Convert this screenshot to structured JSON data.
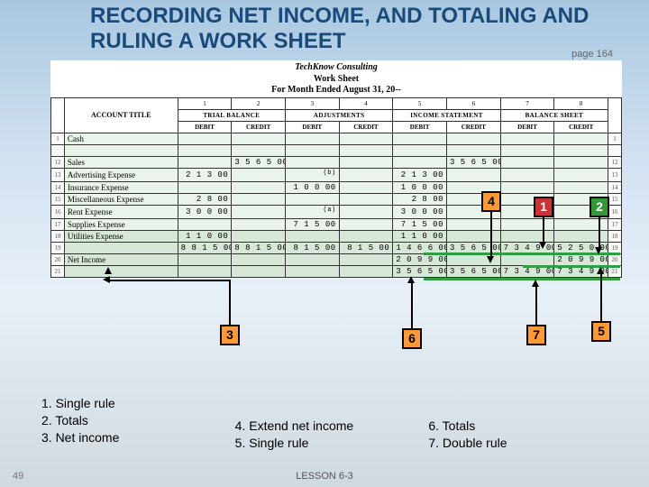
{
  "title": "RECORDING NET INCOME, AND TOTALING AND RULING A WORK SHEET",
  "page_ref": "page 164",
  "slide_number": "49",
  "footer": "LESSON 6-3",
  "ws": {
    "company": "TechKnow Consulting",
    "doc": "Work Sheet",
    "period": "For Month Ended August 31, 20--",
    "acct_title_hdr": "ACCOUNT TITLE",
    "colnums": [
      "1",
      "2",
      "3",
      "4",
      "5",
      "6",
      "7",
      "8"
    ],
    "sections": [
      "TRIAL BALANCE",
      "ADJUSTMENTS",
      "INCOME STATEMENT",
      "BALANCE SHEET"
    ],
    "dc": [
      "DEBIT",
      "CREDIT",
      "DEBIT",
      "CREDIT",
      "DEBIT",
      "CREDIT",
      "DEBIT",
      "CREDIT"
    ]
  },
  "rows": [
    {
      "n": "1",
      "acct": "Cash",
      "v": [
        "",
        "",
        "",
        "",
        "",
        "",
        "",
        ""
      ]
    },
    {
      "n": "",
      "acct": "",
      "v": [
        "",
        "",
        "",
        "",
        "",
        "",
        "",
        ""
      ]
    },
    {
      "n": "12",
      "acct": "Sales",
      "v": [
        "",
        "3 5 6 5 00",
        "",
        "",
        "",
        "3 5 6 5 00",
        "",
        ""
      ]
    },
    {
      "n": "13",
      "acct": "Advertising Expense",
      "v": [
        "2 1 3 00",
        "",
        "",
        "",
        "2 1 3 00",
        "",
        "",
        ""
      ]
    },
    {
      "n": "14",
      "acct": "Insurance Expense",
      "v": [
        "",
        "",
        "1 0 0 00",
        "",
        "1 0 0 00",
        "",
        "",
        ""
      ]
    },
    {
      "n": "15",
      "acct": "Miscellaneous Expense",
      "v": [
        "2 8 00",
        "",
        "",
        "",
        "2 8 00",
        "",
        "",
        ""
      ]
    },
    {
      "n": "16",
      "acct": "Rent Expense",
      "v": [
        "3 0 0 00",
        "",
        "",
        "",
        "3 0 0 00",
        "",
        "",
        ""
      ]
    },
    {
      "n": "17",
      "acct": "Supplies Expense",
      "v": [
        "",
        "",
        "7 1 5 00",
        "",
        "7 1 5 00",
        "",
        "",
        ""
      ]
    },
    {
      "n": "18",
      "acct": "Utilities Expense",
      "v": [
        "1 1 0 00",
        "",
        "",
        "",
        "1 1 0 00",
        "",
        "",
        ""
      ]
    },
    {
      "n": "19",
      "acct": "",
      "v": [
        "8 8 1 5 00",
        "8 8 1 5 00",
        "8 1 5 00",
        "8 1 5 00",
        "1 4 6 6 00",
        "3 5 6 5 00",
        "7 3 4 9 00",
        "5 2 5 0 00"
      ]
    },
    {
      "n": "20",
      "acct": "Net Income",
      "v": [
        "",
        "",
        "",
        "",
        "2 0 9 9 00",
        "",
        "",
        "2 0 9 9 00"
      ]
    },
    {
      "n": "21",
      "acct": "",
      "v": [
        "",
        "",
        "",
        "",
        "3 5 6 5 00",
        "3 5 6 5 00",
        "7 3 4 9 00",
        "7 3 4 9 00"
      ]
    }
  ],
  "notes": {
    "b": "(b)",
    "a": "(a)"
  },
  "callouts": {
    "c1": "1",
    "c2": "2",
    "c3": "3",
    "c4": "4",
    "c5": "5",
    "c6": "6",
    "c7": "7"
  },
  "instructions": {
    "colA": [
      "1.  Single rule",
      "2.  Totals",
      "3.  Net income"
    ],
    "colB": [
      "4.  Extend net income",
      "5.  Single rule"
    ],
    "colC": [
      "6.  Totals",
      "7.  Double rule"
    ]
  },
  "colors": {
    "orange": "#ff9933",
    "red": "#cc3333",
    "green": "#339933"
  }
}
